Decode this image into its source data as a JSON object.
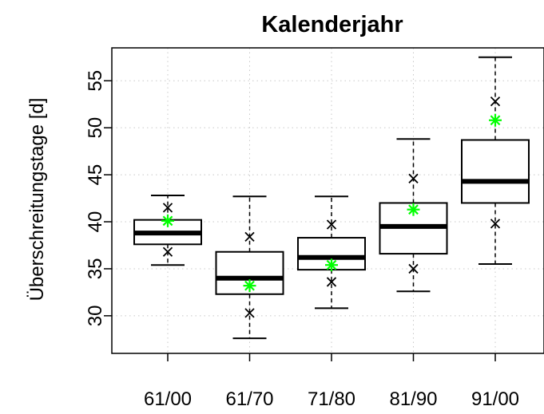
{
  "chart_data": {
    "type": "box",
    "title": "Kalenderjahr",
    "xlabel": "",
    "ylabel": "Überschreitungstage [d]",
    "categories": [
      "61/00",
      "61/70",
      "71/80",
      "81/90",
      "91/00"
    ],
    "ylim": [
      26.0,
      58.5
    ],
    "y_ticks": [
      30,
      35,
      40,
      45,
      50,
      55
    ],
    "grid": true,
    "boxes": [
      {
        "category": "61/00",
        "whisker_low": 35.4,
        "q1": 37.6,
        "median": 38.8,
        "q3": 40.2,
        "whisker_high": 42.8
      },
      {
        "category": "61/70",
        "whisker_low": 27.6,
        "q1": 32.3,
        "median": 34.0,
        "q3": 36.8,
        "whisker_high": 42.7
      },
      {
        "category": "71/80",
        "whisker_low": 30.8,
        "q1": 34.9,
        "median": 36.2,
        "q3": 38.3,
        "whisker_high": 42.7
      },
      {
        "category": "81/90",
        "whisker_low": 32.6,
        "q1": 36.6,
        "median": 39.5,
        "q3": 42.0,
        "whisker_high": 48.8
      },
      {
        "category": "91/00",
        "whisker_low": 35.5,
        "q1": 42.0,
        "median": 44.3,
        "q3": 48.7,
        "whisker_high": 57.5
      }
    ],
    "x_markers": [
      {
        "category": "61/00",
        "values": [
          41.5,
          36.8
        ]
      },
      {
        "category": "61/70",
        "values": [
          38.4,
          30.3
        ]
      },
      {
        "category": "71/80",
        "values": [
          39.7,
          33.6
        ]
      },
      {
        "category": "81/90",
        "values": [
          44.6,
          35.0
        ]
      },
      {
        "category": "91/00",
        "values": [
          52.8,
          39.8
        ]
      }
    ],
    "star_markers": {
      "color": "#00ff00",
      "values": [
        40.1,
        33.2,
        35.4,
        41.3,
        50.8
      ]
    },
    "colors": {
      "box_outline": "#000000",
      "box_fill": "#ffffff",
      "grid": "#c8c8c8"
    }
  }
}
